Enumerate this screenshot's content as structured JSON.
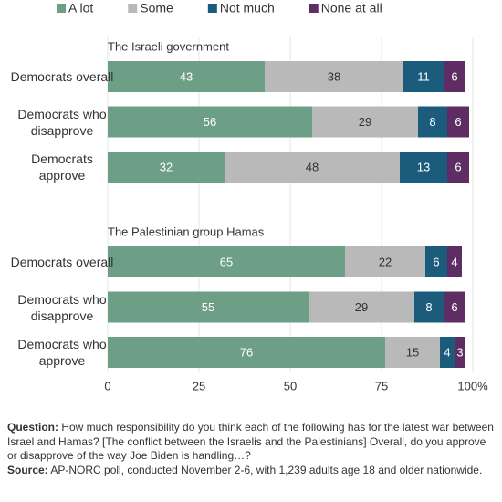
{
  "chart_data": {
    "type": "stacked-bar",
    "orientation": "horizontal",
    "series": [
      {
        "name": "A lot",
        "color": "#6d9e86"
      },
      {
        "name": "Some",
        "color": "#b9b9b9"
      },
      {
        "name": "Not much",
        "color": "#1b5c7d"
      },
      {
        "name": "None at all",
        "color": "#5e2d63"
      }
    ],
    "panels": [
      {
        "title": "The Israeli government",
        "categories": [
          "Democrats overall",
          "Democrats who disapprove",
          "Democrats approve"
        ],
        "values": [
          [
            43,
            38,
            11,
            6
          ],
          [
            56,
            29,
            8,
            6
          ],
          [
            32,
            48,
            13,
            6
          ]
        ]
      },
      {
        "title": "The Palestinian group Hamas",
        "categories": [
          "Democrats overall",
          "Democrats who disapprove",
          "Democrats who approve"
        ],
        "values": [
          [
            65,
            22,
            6,
            4
          ],
          [
            55,
            29,
            8,
            6
          ],
          [
            76,
            15,
            4,
            3
          ]
        ]
      }
    ],
    "xlim": [
      0,
      100
    ],
    "xticks": [
      0,
      25,
      50,
      75,
      {
        "value": 100,
        "label": "100%"
      }
    ],
    "grid": true
  },
  "footer": {
    "question": {
      "label": "Question:",
      "text": "How much responsibility do you think each of the following has for the latest war between Israel and Hamas? [The conflict between the Israelis and the Palestinians] Overall, do you approve or disapprove of the way Joe Biden is handling…?"
    },
    "source": {
      "label": "Source:",
      "text": "AP-NORC poll, conducted November 2-6, with 1,239 adults age 18 and older nationwide."
    }
  }
}
